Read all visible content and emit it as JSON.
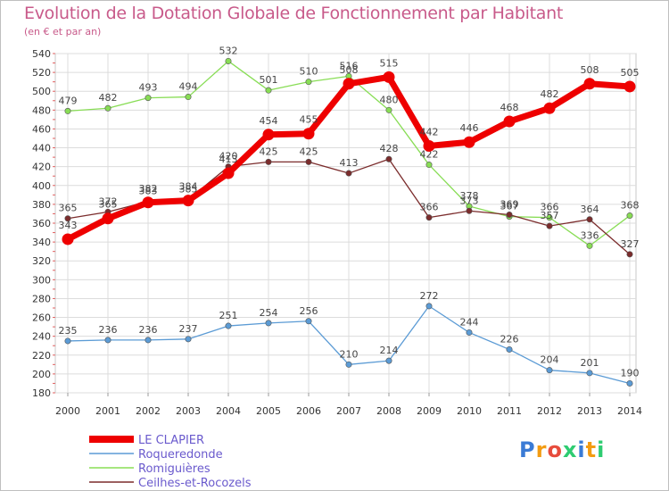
{
  "title": "Evolution de la Dotation Globale de Fonctionnement par Habitant",
  "subtitle": "(en € et par an)",
  "logo": {
    "text": "Proxiti",
    "letter_colors": [
      "#3a7bd5",
      "#f39c12",
      "#e74c3c",
      "#2ecc71",
      "#3a7bd5",
      "#f39c12",
      "#2ecc71"
    ]
  },
  "chart_data": {
    "type": "line",
    "x": [
      "2000",
      "2001",
      "2002",
      "2003",
      "2004",
      "2005",
      "2006",
      "2007",
      "2008",
      "2009",
      "2010",
      "2011",
      "2012",
      "2013",
      "2014"
    ],
    "ylim": [
      180,
      540
    ],
    "yticks": [
      180,
      200,
      220,
      240,
      260,
      280,
      300,
      320,
      340,
      360,
      380,
      400,
      420,
      440,
      460,
      480,
      500,
      520,
      540
    ],
    "grid": true,
    "legend_position": "bottom-left",
    "series": [
      {
        "name": "LE CLAPIER",
        "color": "#ee0000",
        "values": [
          343,
          365,
          382,
          384,
          413,
          454,
          455,
          508,
          515,
          442,
          446,
          468,
          482,
          508,
          505
        ],
        "labels": [
          "343",
          "365",
          "382",
          "384",
          "413",
          "454",
          "455",
          "508",
          "515",
          "442",
          "446",
          "468",
          "482",
          "508",
          "505"
        ]
      },
      {
        "name": "Roqueredonde",
        "color": "#5b9bd5",
        "values": [
          235,
          236,
          236,
          237,
          251,
          254,
          256,
          210,
          214,
          272,
          244,
          226,
          204,
          201,
          190
        ],
        "labels": [
          "235",
          "236",
          "236",
          "237",
          "251",
          "254",
          "256",
          "210",
          "214",
          "272",
          "244",
          "226",
          "204",
          "201",
          "190"
        ]
      },
      {
        "name": "Romiguières",
        "color": "#88dd55",
        "values": [
          479,
          482,
          493,
          494,
          532,
          501,
          510,
          516,
          480,
          422,
          378,
          367,
          366,
          336,
          368
        ],
        "labels": [
          "479",
          "482",
          "493",
          "494",
          "532",
          "501",
          "510",
          "516",
          "480",
          "422",
          "378",
          "367",
          "366",
          "336",
          "368"
        ]
      },
      {
        "name": "Ceilhes-et-Rocozels",
        "color": "#7b2c2c",
        "values": [
          365,
          372,
          383,
          385,
          420,
          425,
          425,
          413,
          428,
          366,
          373,
          369,
          357,
          364,
          327
        ],
        "labels": [
          "365",
          "372",
          "383",
          "385",
          "420",
          "425",
          "425",
          "413",
          "428",
          "366",
          "373",
          "369",
          "357",
          "364",
          "327"
        ]
      }
    ]
  }
}
